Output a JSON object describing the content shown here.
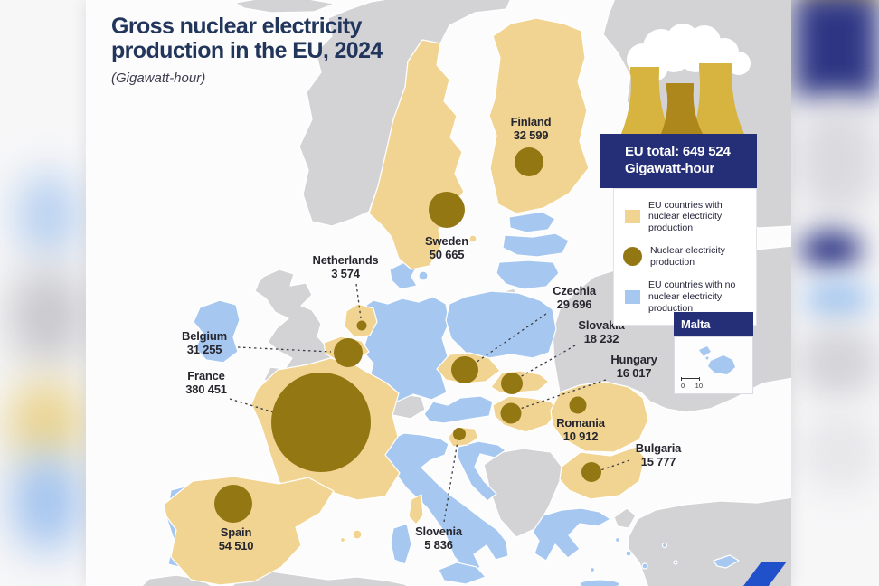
{
  "title": {
    "text": "Gross nuclear electricity production in the EU, 2024",
    "unit": "(Gigawatt-hour)"
  },
  "legend": {
    "total_line1": "EU total: 649 524",
    "total_line2": "Gigawatt-hour",
    "items": [
      {
        "swatch": "square",
        "color": "#f2d492",
        "label": "EU countries with nuclear electricity production"
      },
      {
        "swatch": "circle",
        "color": "#937712",
        "label": "Nuclear electricity production"
      },
      {
        "swatch": "square",
        "color": "#a6c8f0",
        "label": "EU countries with no nuclear electricity production"
      }
    ]
  },
  "inset": {
    "title": "Malta",
    "scale_start": "0",
    "scale_end": "10"
  },
  "chart_data": {
    "type": "map",
    "title": "Gross nuclear electricity production in the EU, 2024",
    "unit": "Gigawatt-hour",
    "eu_total": "649 524",
    "countries": [
      {
        "name": "Finland",
        "value": "32 599"
      },
      {
        "name": "Sweden",
        "value": "50 665"
      },
      {
        "name": "Netherlands",
        "value": "3 574"
      },
      {
        "name": "Belgium",
        "value": "31 255"
      },
      {
        "name": "France",
        "value": "380 451"
      },
      {
        "name": "Czechia",
        "value": "29 696"
      },
      {
        "name": "Slovakia",
        "value": "18 232"
      },
      {
        "name": "Hungary",
        "value": "16 017"
      },
      {
        "name": "Romania",
        "value": "10 912"
      },
      {
        "name": "Bulgaria",
        "value": "15 777"
      },
      {
        "name": "Slovenia",
        "value": "5 836"
      },
      {
        "name": "Spain",
        "value": "54 510"
      }
    ],
    "eu_countries_no_nuclear_shown": [
      "Ireland",
      "Portugal",
      "Italy",
      "Germany",
      "Poland",
      "Austria",
      "Denmark",
      "Estonia",
      "Latvia",
      "Lithuania",
      "Croatia",
      "Greece",
      "Cyprus",
      "Malta"
    ],
    "colors": {
      "with_nuclear": "#f2d492",
      "no_nuclear": "#a6c8f0",
      "non_eu": "#d3d3d6",
      "production_circle": "#937712",
      "header_navy": "#242f77",
      "sea": "#fcfcfd"
    }
  }
}
